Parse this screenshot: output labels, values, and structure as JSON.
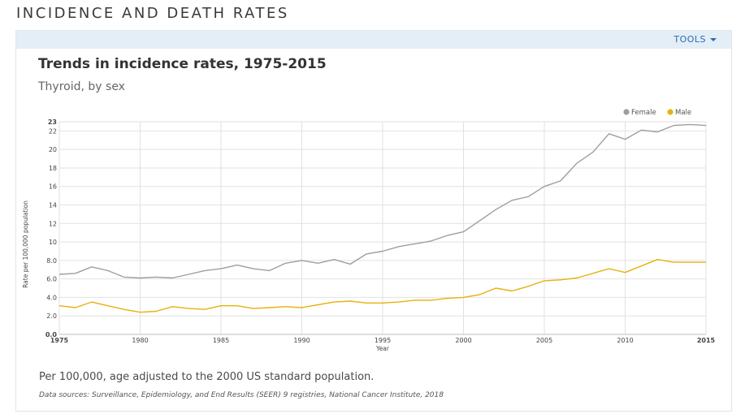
{
  "section_title": "INCIDENCE AND DEATH RATES",
  "toolbar": {
    "tools_label": "TOOLS"
  },
  "footnote": "Per 100,000, age adjusted to the 2000 US standard population.",
  "sources": "Data sources: Surveillance, Epidemiology, and End Results (SEER) 9 registries, National Cancer Institute, 2018",
  "colors": {
    "female": "#9e9e9e",
    "male": "#e8b10e",
    "grid": "#e2e2e2",
    "accent": "#2b6cb0"
  },
  "chart_data": {
    "type": "line",
    "title": "Trends in incidence rates, 1975-2015",
    "subtitle": "Thyroid, by sex",
    "xlabel": "Year",
    "ylabel": "Rate per 100,000 population",
    "xlim": [
      1975,
      2015
    ],
    "ylim": [
      0,
      23
    ],
    "x_ticks": [
      "1975",
      "1980",
      "1985",
      "1990",
      "1995",
      "2000",
      "2005",
      "2010",
      "2015"
    ],
    "y_ticks": [
      "0.0",
      "2.0",
      "4.0",
      "6.0",
      "8.0",
      "10",
      "12",
      "14",
      "16",
      "18",
      "20",
      "22",
      "23"
    ],
    "legend": [
      "Female",
      "Male"
    ],
    "legend_position": "top-right",
    "x": [
      1975,
      1976,
      1977,
      1978,
      1979,
      1980,
      1981,
      1982,
      1983,
      1984,
      1985,
      1986,
      1987,
      1988,
      1989,
      1990,
      1991,
      1992,
      1993,
      1994,
      1995,
      1996,
      1997,
      1998,
      1999,
      2000,
      2001,
      2002,
      2003,
      2004,
      2005,
      2006,
      2007,
      2008,
      2009,
      2010,
      2011,
      2012,
      2013,
      2014,
      2015
    ],
    "series": [
      {
        "name": "Female",
        "values": [
          6.5,
          6.6,
          7.3,
          6.9,
          6.2,
          6.1,
          6.2,
          6.1,
          6.5,
          6.9,
          7.1,
          7.5,
          7.1,
          6.9,
          7.7,
          8.0,
          7.7,
          8.1,
          7.6,
          8.7,
          9.0,
          9.5,
          9.8,
          10.1,
          10.7,
          11.1,
          12.3,
          13.5,
          14.5,
          14.9,
          16.0,
          16.6,
          18.5,
          19.7,
          21.7,
          21.1,
          22.1,
          21.9,
          22.6,
          22.7,
          22.6
        ]
      },
      {
        "name": "Male",
        "values": [
          3.1,
          2.9,
          3.5,
          3.1,
          2.7,
          2.4,
          2.5,
          3.0,
          2.8,
          2.7,
          3.1,
          3.1,
          2.8,
          2.9,
          3.0,
          2.9,
          3.2,
          3.5,
          3.6,
          3.4,
          3.4,
          3.5,
          3.7,
          3.7,
          3.9,
          4.0,
          4.3,
          5.0,
          4.7,
          5.2,
          5.8,
          5.9,
          6.1,
          6.6,
          7.1,
          6.7,
          7.4,
          8.1,
          7.8,
          7.8,
          7.8
        ]
      }
    ]
  }
}
